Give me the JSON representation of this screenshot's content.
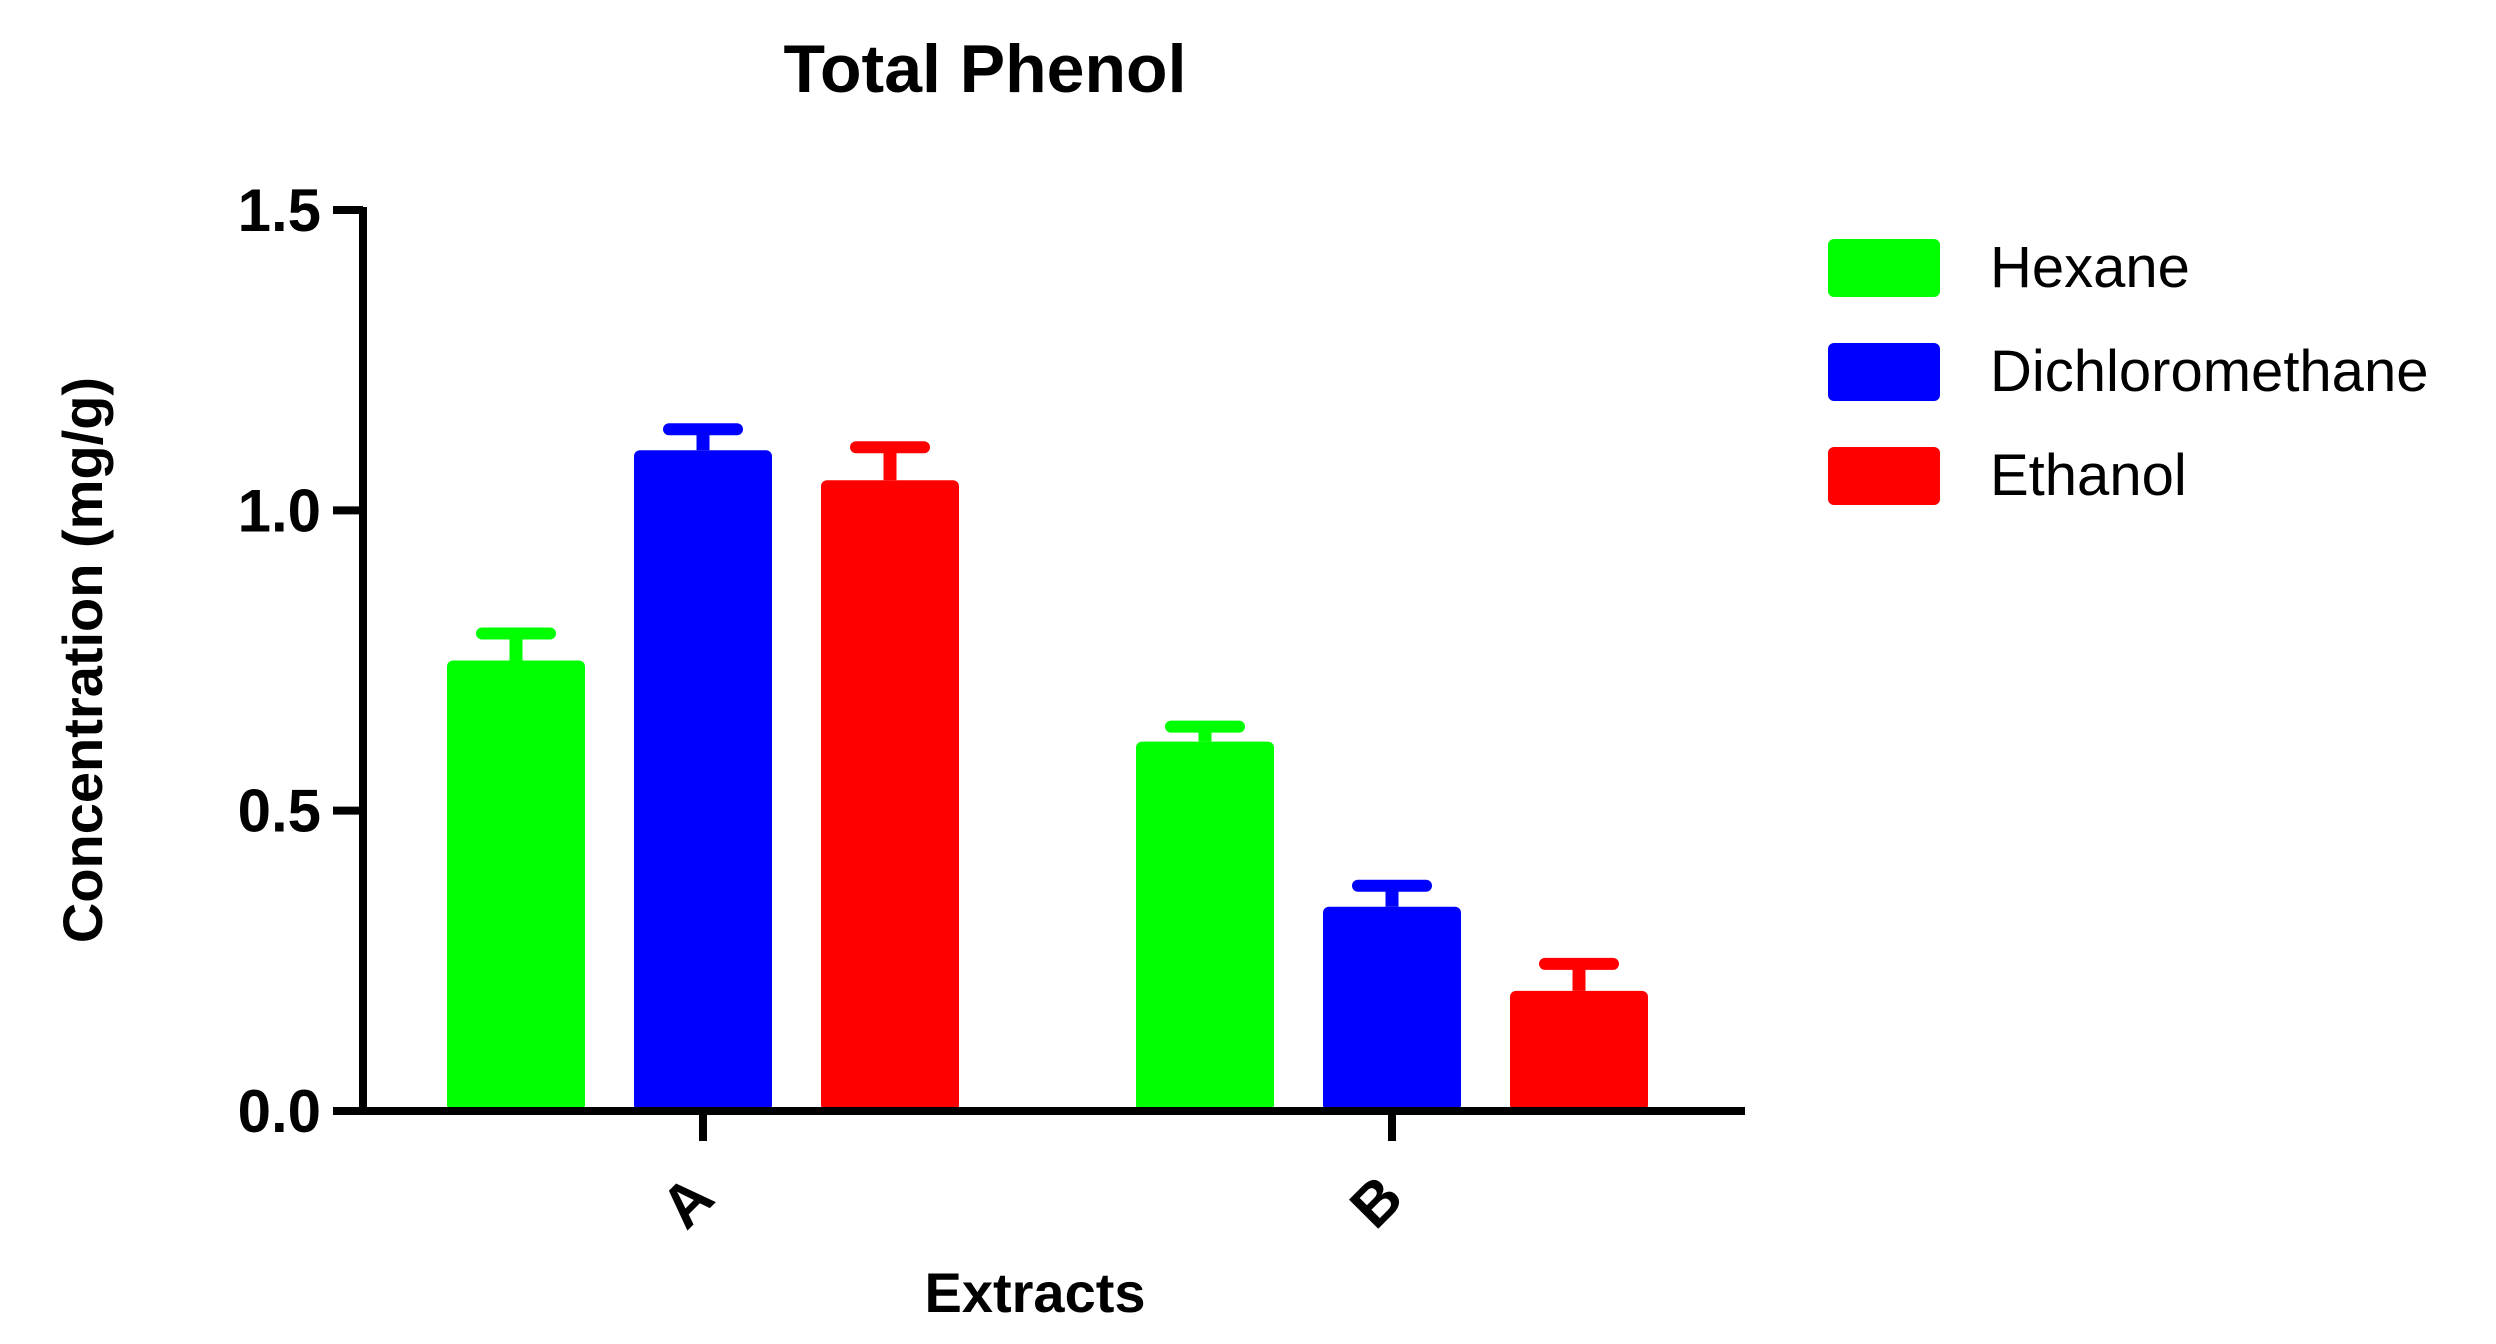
{
  "chart_data": {
    "type": "bar",
    "title": "Total Phenol",
    "xlabel": "Extracts",
    "ylabel": "Concentration (mg/g)",
    "categories": [
      "A",
      "B"
    ],
    "series": [
      {
        "name": "Hexane",
        "color": "#00ff00",
        "values": [
          0.75,
          0.615
        ],
        "errors": [
          0.045,
          0.025
        ]
      },
      {
        "name": "Dichloromethane",
        "color": "#0000ff",
        "values": [
          1.1,
          0.34
        ],
        "errors": [
          0.035,
          0.035
        ]
      },
      {
        "name": "Ethanol",
        "color": "#ff0000",
        "values": [
          1.05,
          0.2
        ],
        "errors": [
          0.055,
          0.045
        ]
      }
    ],
    "ylim": [
      0,
      1.5
    ],
    "yticks": [
      "0.0",
      "0.5",
      "1.0",
      "1.5"
    ],
    "ytick_values": [
      0,
      0.5,
      1.0,
      1.5
    ],
    "grid": false,
    "legend_position": "top-right"
  }
}
